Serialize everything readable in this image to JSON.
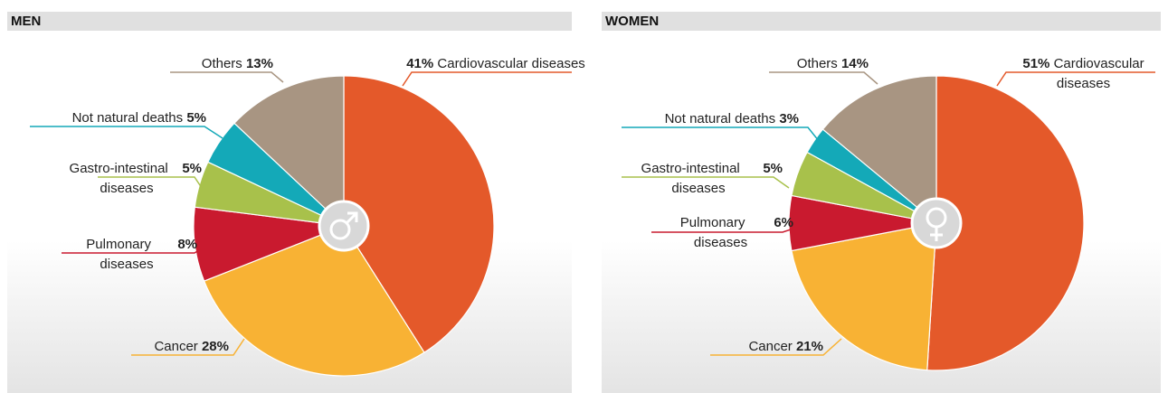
{
  "chart_data": [
    {
      "type": "pie",
      "title": "MEN",
      "categories": [
        "Cardiovascular diseases",
        "Cancer",
        "Pulmonary diseases",
        "Gastro-intestinal diseases",
        "Not natural deaths",
        "Others"
      ],
      "values": [
        41,
        28,
        8,
        5,
        5,
        13
      ],
      "value_labels": [
        "41%",
        "28%",
        "8%",
        "5%",
        "5%",
        "13%"
      ],
      "colors": [
        "#e4592a",
        "#f8b234",
        "#c91a2f",
        "#a8c14b",
        "#14a9b8",
        "#a89582"
      ]
    },
    {
      "type": "pie",
      "title": "WOMEN",
      "categories": [
        "Cardiovascular diseases",
        "Cancer",
        "Pulmonary diseases",
        "Gastro-intestinal diseases",
        "Not natural deaths",
        "Others"
      ],
      "values": [
        51,
        21,
        6,
        5,
        3,
        14
      ],
      "value_labels": [
        "51%",
        "21%",
        "6%",
        "5%",
        "3%",
        "14%"
      ],
      "colors": [
        "#e4592a",
        "#f8b234",
        "#c91a2f",
        "#a8c14b",
        "#14a9b8",
        "#a89582"
      ]
    }
  ]
}
